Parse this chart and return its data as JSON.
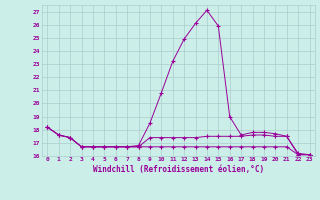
{
  "xlabel": "Windchill (Refroidissement éolien,°C)",
  "background_color": "#cceee8",
  "grid_color": "#aacccc",
  "line_color": "#990099",
  "hours": [
    0,
    1,
    2,
    3,
    4,
    5,
    6,
    7,
    8,
    9,
    10,
    11,
    12,
    13,
    14,
    15,
    16,
    17,
    18,
    19,
    20,
    21,
    22,
    23
  ],
  "temp_line": [
    18.2,
    17.6,
    17.4,
    16.7,
    16.7,
    16.7,
    16.7,
    16.7,
    16.8,
    18.5,
    20.8,
    23.2,
    24.9,
    26.1,
    27.1,
    25.9,
    19.0,
    17.6,
    17.8,
    17.8,
    17.7,
    17.5,
    16.2,
    16.1
  ],
  "windchill_line": [
    18.2,
    17.6,
    17.4,
    16.7,
    16.7,
    16.7,
    16.7,
    16.7,
    16.7,
    17.4,
    17.4,
    17.4,
    17.4,
    17.4,
    17.5,
    17.5,
    17.5,
    17.5,
    17.6,
    17.6,
    17.5,
    17.5,
    16.1,
    16.1
  ],
  "mintemp_line": [
    18.2,
    17.6,
    17.4,
    16.7,
    16.7,
    16.7,
    16.7,
    16.7,
    16.7,
    16.7,
    16.7,
    16.7,
    16.7,
    16.7,
    16.7,
    16.7,
    16.7,
    16.7,
    16.7,
    16.7,
    16.7,
    16.7,
    16.1,
    16.1
  ],
  "ylim": [
    16,
    27.5
  ],
  "yticks": [
    16,
    17,
    18,
    19,
    20,
    21,
    22,
    23,
    24,
    25,
    26,
    27
  ],
  "xlim": [
    -0.5,
    23.5
  ],
  "xticks": [
    0,
    1,
    2,
    3,
    4,
    5,
    6,
    7,
    8,
    9,
    10,
    11,
    12,
    13,
    14,
    15,
    16,
    17,
    18,
    19,
    20,
    21,
    22,
    23
  ]
}
